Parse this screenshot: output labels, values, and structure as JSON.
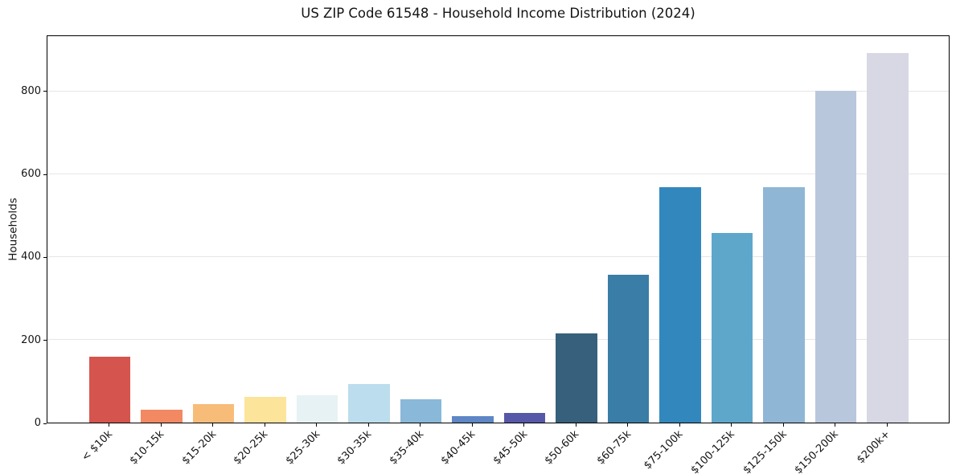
{
  "chart_data": {
    "type": "bar",
    "title": "US ZIP Code 61548 - Household Income Distribution (2024)",
    "xlabel": "",
    "ylabel": "Households",
    "categories": [
      "< $10k",
      "$10-15k",
      "$15-20k",
      "$20-25k",
      "$25-30k",
      "$30-35k",
      "$35-40k",
      "$40-45k",
      "$45-50k",
      "$50-60k",
      "$60-75k",
      "$75-100k",
      "$100-125k",
      "$125-150k",
      "$150-200k",
      "$200k+"
    ],
    "values": [
      159,
      31,
      45,
      62,
      66,
      93,
      56,
      16,
      24,
      215,
      357,
      568,
      457,
      568,
      800,
      890
    ],
    "bar_colors": [
      "#d6544e",
      "#f28963",
      "#f8bc79",
      "#fce49b",
      "#e7f2f4",
      "#bcdded",
      "#89b8d9",
      "#5f86c5",
      "#5757a9",
      "#36607b",
      "#3a7da6",
      "#3288bd",
      "#5ea7cb",
      "#90b6d5",
      "#b9c7dd",
      "#d7d8e4"
    ],
    "ylim": [
      0,
      935
    ],
    "yticks": [
      0,
      200,
      400,
      600,
      800
    ],
    "grid": "horizontal-only",
    "gridline_color": "#e6e6e6",
    "legend": "none",
    "x_label_rotation_deg": 45
  }
}
